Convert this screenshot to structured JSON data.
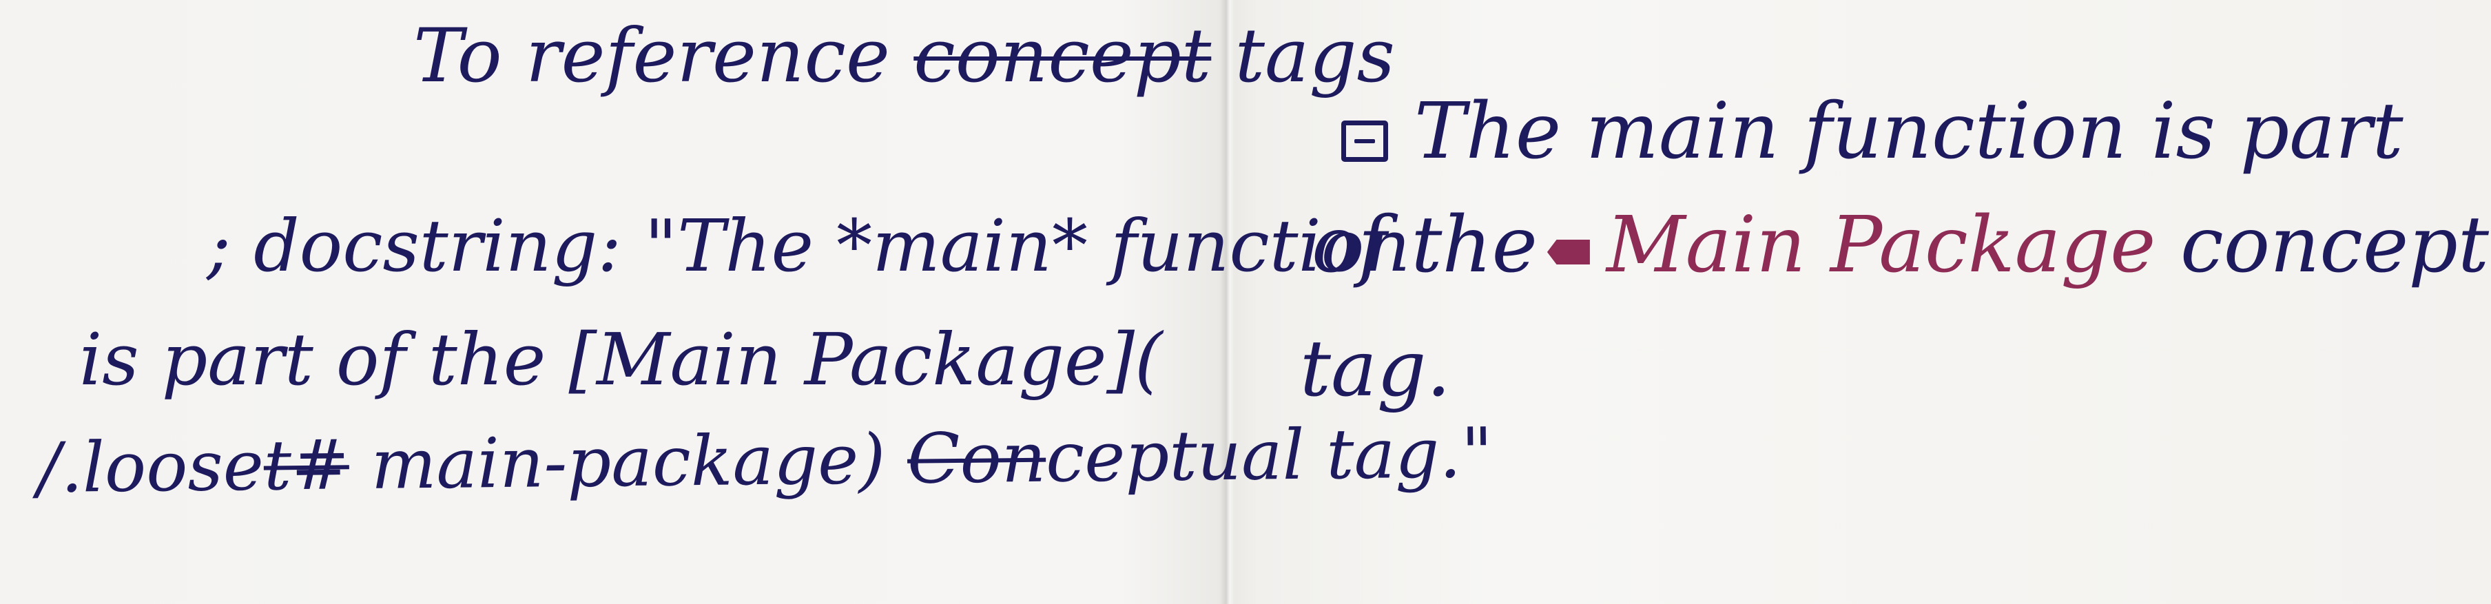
{
  "left_page": {
    "line_1_before": "To reference ",
    "line_1_struck": "concept",
    "line_1_after": " tags",
    "line_2": "; docstring: \"The *main* function",
    "line_3": "is part of the [Main Package](",
    "line_4_before": "/.loose",
    "line_4_struck_a": "t#",
    "line_4_middle": " main-package) ",
    "line_4_struck_b": "Con",
    "line_4_after": "ceptual tag.\""
  },
  "right_page": {
    "line_1": "The main function is part",
    "line_2_before": "of the",
    "line_2_link": "Main Package",
    "line_2_after": " conceptual",
    "line_3": "tag."
  },
  "colors": {
    "ink": "#1d1a5e",
    "link_ink": "#8e2c55",
    "paper": "#f4f3f1"
  },
  "icons": {
    "doc_icon": "docstring-box-icon",
    "tag_icon": "concept-tag-icon"
  }
}
